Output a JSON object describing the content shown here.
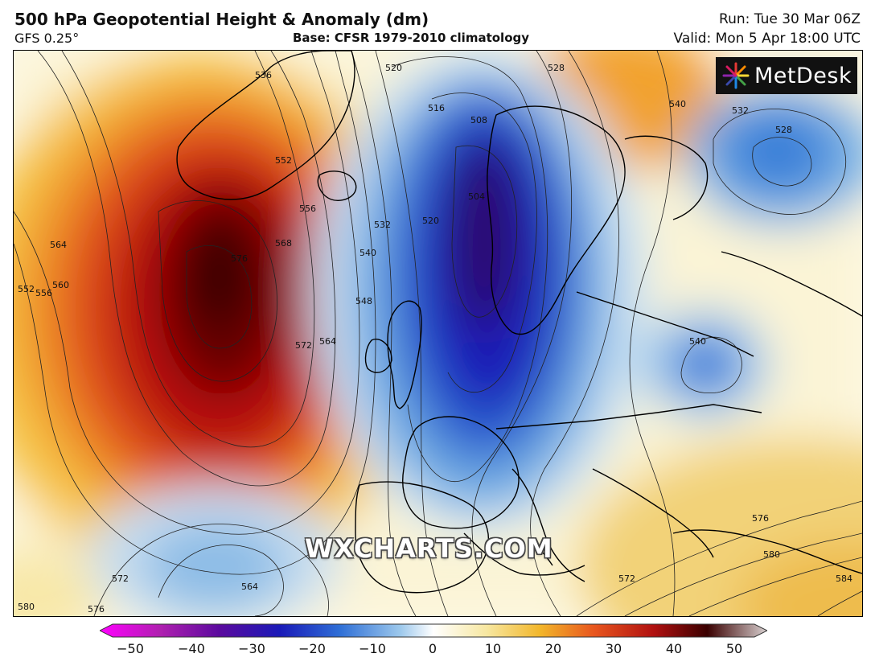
{
  "header": {
    "title": "500 hPa Geopotential Height & Anomaly (dm)",
    "model": "GFS 0.25°",
    "base": "Base: CFSR 1979-2010 climatology",
    "run": "Run: Tue 30 Mar 06Z",
    "valid": "Valid: Mon 5 Apr 18:00 UTC"
  },
  "logo": {
    "text": "MetDesk",
    "icon": "starburst-icon"
  },
  "watermark": "WXCHARTS.COM",
  "contour_labels": [
    "536",
    "552",
    "556",
    "564",
    "560",
    "552",
    "556",
    "568",
    "576",
    "572",
    "564",
    "548",
    "540",
    "532",
    "520",
    "516",
    "508",
    "504",
    "520",
    "528",
    "540",
    "532",
    "528",
    "540",
    "576",
    "580",
    "584",
    "572",
    "564",
    "572",
    "576",
    "580"
  ],
  "colorbar": {
    "ticks": [
      "−50",
      "−40",
      "−30",
      "−20",
      "−10",
      "0",
      "10",
      "20",
      "30",
      "40",
      "50"
    ],
    "colors": [
      "#f0f",
      "#b020b0",
      "#5a0a9e",
      "#1a1ab8",
      "#2f6fd6",
      "#9cc8ec",
      "#ffffff",
      "#f7e7a0",
      "#f2b62a",
      "#e8561e",
      "#b01010",
      "#3a0000",
      "#d8d0d0"
    ]
  },
  "colors": {
    "ridge_dark": "#3a0000",
    "ridge": "#b81010",
    "trough": "#1a1ab8",
    "trough_dark": "#2a0a70"
  }
}
